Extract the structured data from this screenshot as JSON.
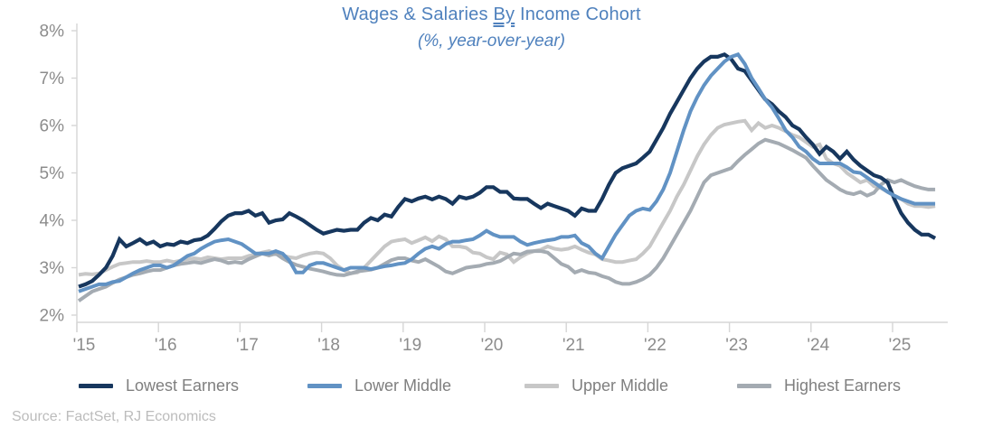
{
  "header": {
    "title_prefix": "Wages & Salaries",
    "title_by": "By",
    "title_suffix": "Income Cohort",
    "subtitle": "(%, year-over-year)",
    "title_color": "#4f81bd"
  },
  "source": "Source: FactSet, RJ Economics",
  "chart_data": {
    "type": "line",
    "title": "Wages & Salaries By Income Cohort",
    "subtitle": "(%, year-over-year)",
    "x_start_year": 2015,
    "points_per_year": 12,
    "x_range": [
      2015.0,
      2025.5
    ],
    "ylim": [
      2,
      8
    ],
    "grid": false,
    "legend_position": "bottom",
    "axis_color": "#d6d6d6",
    "tick_label_color": "#8c8c8c",
    "y_ticks": [
      {
        "value": 2,
        "label": "2%"
      },
      {
        "value": 3,
        "label": "3%"
      },
      {
        "value": 4,
        "label": "4%"
      },
      {
        "value": 5,
        "label": "5%"
      },
      {
        "value": 6,
        "label": "6%"
      },
      {
        "value": 7,
        "label": "7%"
      },
      {
        "value": 8,
        "label": "8%"
      }
    ],
    "x_ticks": [
      {
        "year": 2015,
        "label": "'15"
      },
      {
        "year": 2016,
        "label": "'16"
      },
      {
        "year": 2017,
        "label": "'17"
      },
      {
        "year": 2018,
        "label": "'18"
      },
      {
        "year": 2019,
        "label": "'19"
      },
      {
        "year": 2020,
        "label": "'20"
      },
      {
        "year": 2021,
        "label": "'21"
      },
      {
        "year": 2022,
        "label": "'22"
      },
      {
        "year": 2023,
        "label": "'23"
      },
      {
        "year": 2024,
        "label": "'24"
      },
      {
        "year": 2025,
        "label": "'25"
      }
    ],
    "series": [
      {
        "name": "Lowest Earners",
        "color": "#17375e",
        "values": [
          2.6,
          2.65,
          2.72,
          2.85,
          3.0,
          3.25,
          3.6,
          3.45,
          3.52,
          3.6,
          3.5,
          3.55,
          3.45,
          3.5,
          3.48,
          3.55,
          3.52,
          3.58,
          3.6,
          3.68,
          3.82,
          3.98,
          4.1,
          4.15,
          4.15,
          4.2,
          4.1,
          4.15,
          3.95,
          4.0,
          4.02,
          4.15,
          4.08,
          4.0,
          3.9,
          3.8,
          3.72,
          3.76,
          3.8,
          3.78,
          3.8,
          3.8,
          3.95,
          4.05,
          4.0,
          4.12,
          4.08,
          4.28,
          4.45,
          4.4,
          4.46,
          4.5,
          4.44,
          4.5,
          4.45,
          4.35,
          4.5,
          4.46,
          4.5,
          4.58,
          4.7,
          4.7,
          4.6,
          4.6,
          4.46,
          4.45,
          4.45,
          4.35,
          4.26,
          4.35,
          4.3,
          4.25,
          4.2,
          4.1,
          4.25,
          4.2,
          4.2,
          4.45,
          4.75,
          5.0,
          5.1,
          5.15,
          5.2,
          5.32,
          5.45,
          5.7,
          5.95,
          6.25,
          6.5,
          6.75,
          7.0,
          7.2,
          7.35,
          7.45,
          7.45,
          7.5,
          7.4,
          7.2,
          7.15,
          6.95,
          6.75,
          6.55,
          6.45,
          6.3,
          6.18,
          6.0,
          5.92,
          5.75,
          5.6,
          5.4,
          5.55,
          5.45,
          5.3,
          5.45,
          5.28,
          5.15,
          5.05,
          4.95,
          4.9,
          4.8,
          4.45,
          4.15,
          3.95,
          3.8,
          3.7,
          3.7,
          3.62
        ]
      },
      {
        "name": "Lower Middle",
        "color": "#6192c4",
        "values": [
          2.5,
          2.55,
          2.6,
          2.65,
          2.65,
          2.7,
          2.72,
          2.8,
          2.88,
          2.95,
          3.0,
          3.05,
          3.05,
          3.0,
          3.05,
          3.15,
          3.25,
          3.3,
          3.4,
          3.48,
          3.55,
          3.58,
          3.6,
          3.55,
          3.5,
          3.4,
          3.3,
          3.3,
          3.3,
          3.35,
          3.3,
          3.15,
          2.9,
          2.9,
          3.05,
          3.1,
          3.1,
          3.05,
          3.0,
          2.95,
          3.0,
          3.0,
          3.0,
          2.97,
          3.0,
          3.03,
          3.05,
          3.08,
          3.1,
          3.18,
          3.3,
          3.4,
          3.45,
          3.4,
          3.5,
          3.55,
          3.55,
          3.58,
          3.6,
          3.68,
          3.78,
          3.7,
          3.65,
          3.65,
          3.65,
          3.55,
          3.48,
          3.52,
          3.55,
          3.58,
          3.6,
          3.65,
          3.65,
          3.68,
          3.52,
          3.45,
          3.3,
          3.2,
          3.45,
          3.7,
          3.9,
          4.1,
          4.2,
          4.25,
          4.22,
          4.4,
          4.65,
          5.0,
          5.45,
          5.9,
          6.3,
          6.6,
          6.85,
          7.05,
          7.2,
          7.35,
          7.45,
          7.5,
          7.3,
          7.0,
          6.78,
          6.55,
          6.38,
          6.15,
          5.9,
          5.75,
          5.55,
          5.45,
          5.3,
          5.2,
          5.2,
          5.2,
          5.2,
          5.12,
          5.02,
          5.0,
          4.9,
          4.8,
          4.7,
          4.6,
          4.52,
          4.45,
          4.4,
          4.35,
          4.35,
          4.35,
          4.35
        ]
      },
      {
        "name": "Upper Middle",
        "color": "#c7c7c7",
        "values": [
          2.85,
          2.87,
          2.86,
          2.88,
          2.95,
          3.02,
          3.08,
          3.1,
          3.12,
          3.12,
          3.14,
          3.12,
          3.12,
          3.15,
          3.12,
          3.15,
          3.18,
          3.2,
          3.18,
          3.22,
          3.2,
          3.18,
          3.2,
          3.2,
          3.2,
          3.25,
          3.28,
          3.32,
          3.35,
          3.3,
          3.26,
          3.22,
          3.2,
          3.26,
          3.3,
          3.32,
          3.3,
          3.2,
          3.05,
          2.95,
          2.88,
          2.9,
          3.0,
          3.15,
          3.3,
          3.45,
          3.55,
          3.58,
          3.6,
          3.52,
          3.58,
          3.64,
          3.56,
          3.66,
          3.6,
          3.45,
          3.45,
          3.42,
          3.32,
          3.3,
          3.22,
          3.18,
          3.32,
          3.28,
          3.12,
          3.22,
          3.3,
          3.35,
          3.38,
          3.45,
          3.4,
          3.38,
          3.4,
          3.45,
          3.38,
          3.32,
          3.28,
          3.18,
          3.15,
          3.12,
          3.12,
          3.15,
          3.18,
          3.3,
          3.45,
          3.7,
          3.95,
          4.2,
          4.5,
          4.75,
          5.05,
          5.35,
          5.6,
          5.8,
          5.95,
          6.02,
          6.05,
          6.08,
          6.1,
          5.9,
          6.05,
          5.95,
          6.0,
          5.95,
          5.88,
          5.8,
          5.75,
          5.65,
          5.55,
          5.6,
          5.3,
          5.2,
          5.15,
          5.0,
          4.9,
          4.8,
          4.85,
          4.72,
          4.68,
          4.6,
          4.52,
          4.45,
          4.35,
          4.3,
          4.3,
          4.28,
          4.3
        ]
      },
      {
        "name": "Highest Earners",
        "color": "#a4abb2",
        "values": [
          2.3,
          2.4,
          2.5,
          2.55,
          2.6,
          2.68,
          2.75,
          2.8,
          2.85,
          2.88,
          2.92,
          2.95,
          2.95,
          3.0,
          3.05,
          3.08,
          3.1,
          3.12,
          3.1,
          3.14,
          3.18,
          3.15,
          3.1,
          3.12,
          3.1,
          3.18,
          3.24,
          3.3,
          3.26,
          3.3,
          3.2,
          3.12,
          3.06,
          3.02,
          2.98,
          2.95,
          2.92,
          2.88,
          2.85,
          2.84,
          2.88,
          2.92,
          2.94,
          2.96,
          3.0,
          3.08,
          3.16,
          3.2,
          3.2,
          3.15,
          3.12,
          3.18,
          3.1,
          3.02,
          2.92,
          2.88,
          2.94,
          3.0,
          3.02,
          3.04,
          3.08,
          3.1,
          3.14,
          3.22,
          3.3,
          3.28,
          3.34,
          3.35,
          3.35,
          3.32,
          3.2,
          3.08,
          3.02,
          2.9,
          2.95,
          2.9,
          2.88,
          2.82,
          2.78,
          2.7,
          2.66,
          2.66,
          2.7,
          2.76,
          2.85,
          3.0,
          3.2,
          3.45,
          3.7,
          3.95,
          4.2,
          4.5,
          4.8,
          4.95,
          5.0,
          5.05,
          5.1,
          5.25,
          5.38,
          5.5,
          5.62,
          5.7,
          5.66,
          5.62,
          5.55,
          5.48,
          5.4,
          5.32,
          5.15,
          5.0,
          4.85,
          4.75,
          4.65,
          4.58,
          4.55,
          4.6,
          4.52,
          4.58,
          4.75,
          4.85,
          4.8,
          4.85,
          4.78,
          4.72,
          4.68,
          4.65,
          4.65
        ]
      }
    ]
  },
  "legend": {
    "swatch_shape": "line-swatch"
  }
}
